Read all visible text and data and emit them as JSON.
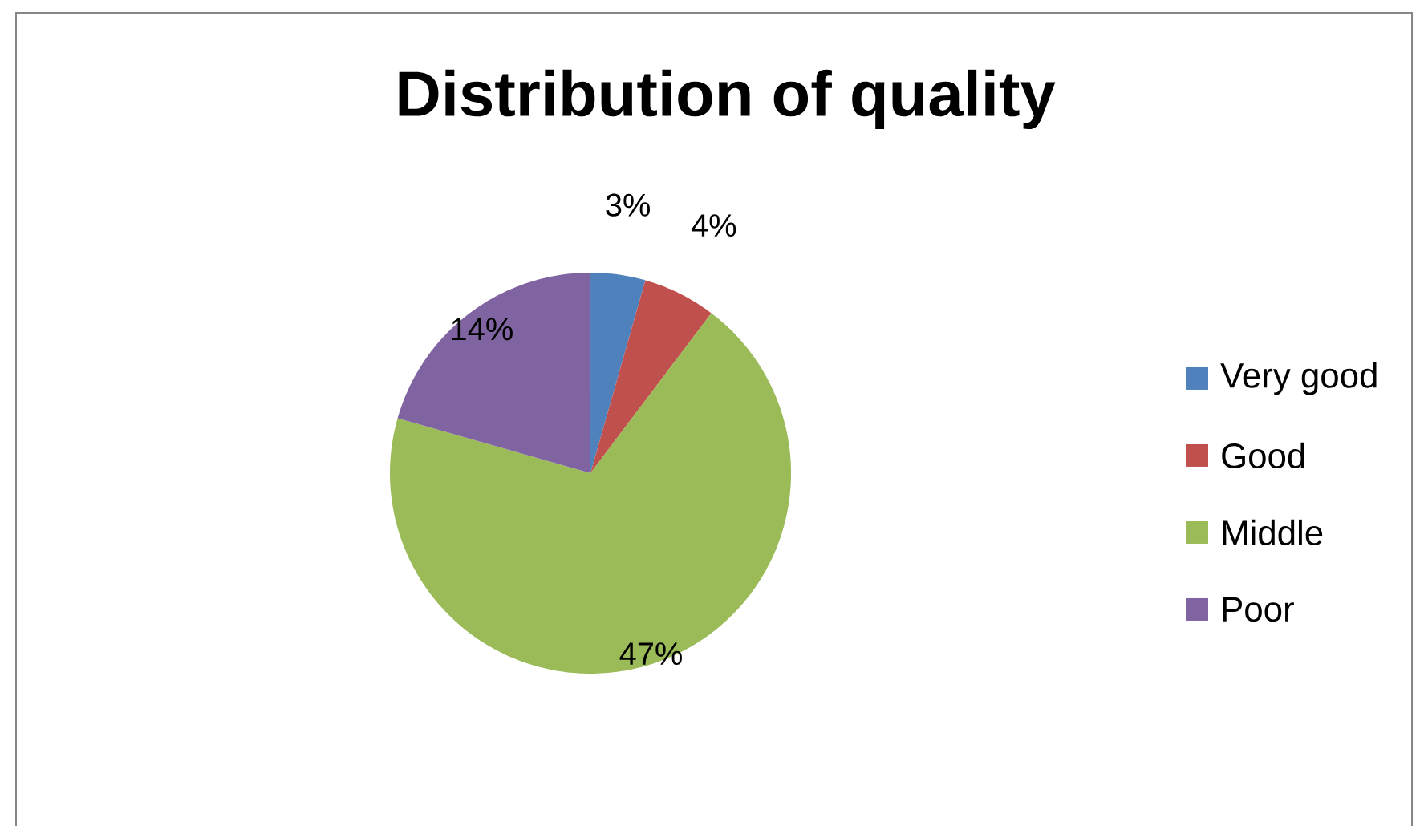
{
  "chart_data": {
    "type": "pie",
    "title": "Distribution of quality",
    "categories": [
      "Very good",
      "Good",
      "Middle",
      "Poor"
    ],
    "values": [
      3,
      4,
      47,
      14
    ],
    "colors": [
      "#4f81bd",
      "#c0504d",
      "#9bbb59",
      "#8064a2"
    ],
    "value_labels": [
      "3%",
      "4%",
      "47%",
      "14%"
    ],
    "legend": "right"
  }
}
